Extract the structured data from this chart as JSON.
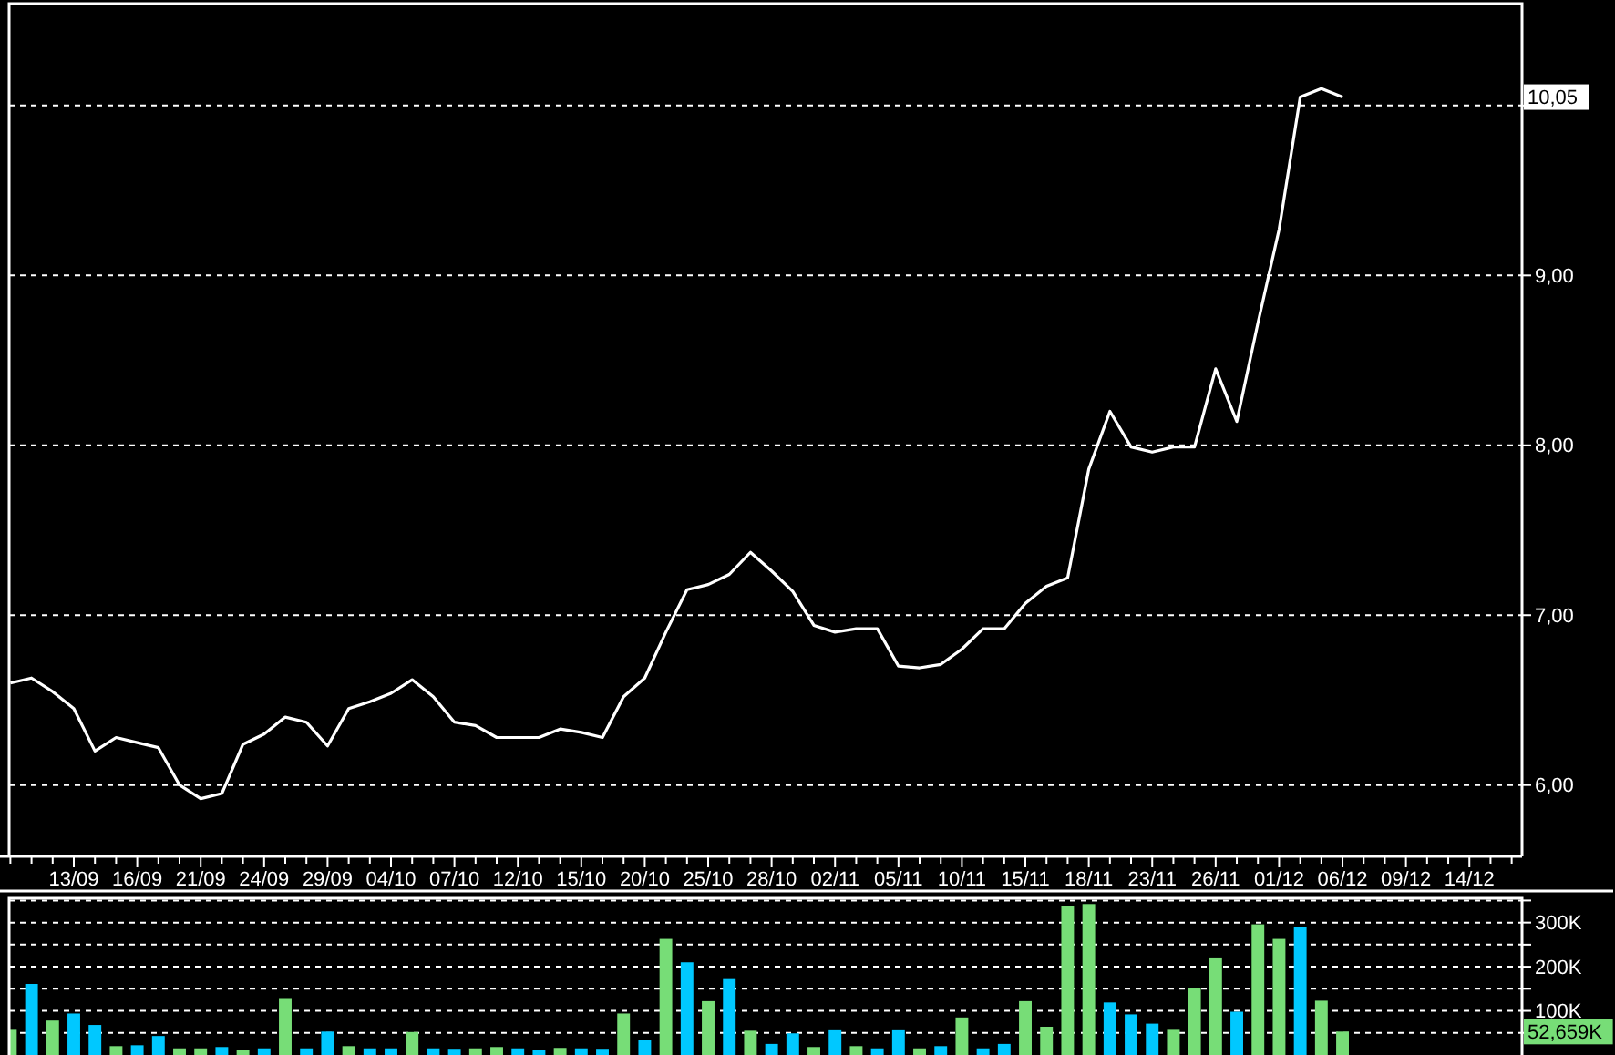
{
  "chart_data": [
    {
      "type": "line",
      "ylim": [
        5.58,
        10.6
      ],
      "categories": [
        null,
        null,
        null,
        "13/09",
        null,
        null,
        "16/09",
        null,
        null,
        "21/09",
        null,
        null,
        "24/09",
        null,
        null,
        "29/09",
        null,
        null,
        "04/10",
        null,
        null,
        "07/10",
        null,
        null,
        "12/10",
        null,
        null,
        "15/10",
        null,
        null,
        "20/10",
        null,
        null,
        "25/10",
        null,
        null,
        "28/10",
        null,
        null,
        "02/11",
        null,
        null,
        "05/11",
        null,
        null,
        "10/11",
        null,
        null,
        "15/11",
        null,
        null,
        "18/11",
        null,
        null,
        "23/11",
        null,
        null,
        "26/11",
        null,
        null,
        "01/12",
        null,
        null,
        "06/12",
        null,
        null,
        "09/12",
        null,
        null,
        "14/12",
        null,
        null
      ],
      "yticks": [
        {
          "value": 6,
          "label": "6,00"
        },
        {
          "value": 7,
          "label": "7,00"
        },
        {
          "value": 8,
          "label": "8,00"
        },
        {
          "value": 9,
          "label": "9,00"
        },
        {
          "value": 10,
          "label": null
        }
      ],
      "grid": "y",
      "annotations": [
        "10,05"
      ],
      "series": [
        {
          "color": "#ffffff",
          "values": [
            6.6,
            6.63,
            6.55,
            6.45,
            6.2,
            6.28,
            6.25,
            6.22,
            6.0,
            5.92,
            5.95,
            6.24,
            6.3,
            6.4,
            6.37,
            6.23,
            6.45,
            6.49,
            6.54,
            6.62,
            6.52,
            6.37,
            6.35,
            6.28,
            6.28,
            6.28,
            6.33,
            6.31,
            6.28,
            6.52,
            6.63,
            6.9,
            7.15,
            7.18,
            7.24,
            7.37,
            7.26,
            7.14,
            6.94,
            6.9,
            6.92,
            6.92,
            6.7,
            6.69,
            6.71,
            6.8,
            6.92,
            6.92,
            7.07,
            7.17,
            7.22,
            7.86,
            8.2,
            7.99,
            7.96,
            7.99,
            7.99,
            8.45,
            8.14,
            8.72,
            9.27,
            10.05,
            10.1,
            10.05,
            null,
            null,
            null,
            null,
            null,
            null,
            null,
            null
          ]
        }
      ]
    },
    {
      "type": "bar",
      "ylim": [
        0,
        355
      ],
      "categories": [
        null,
        null,
        null,
        null,
        null,
        null,
        null,
        null,
        null,
        null,
        null,
        null,
        null,
        null,
        null,
        null,
        null,
        null,
        null,
        null,
        null,
        null,
        null,
        null,
        null,
        null,
        null,
        null,
        null,
        null,
        null,
        null,
        null,
        null,
        null,
        null,
        null,
        null,
        null,
        null,
        null,
        null,
        null,
        null,
        null,
        null,
        null,
        null,
        null,
        null,
        null,
        null,
        null,
        null,
        null,
        null,
        null,
        null,
        null,
        null,
        null,
        null,
        null,
        null,
        null,
        null,
        null,
        null,
        null,
        null,
        null,
        null
      ],
      "yticks": [
        {
          "value": 50,
          "label": null
        },
        {
          "value": 100,
          "label": "100K"
        },
        {
          "value": 150,
          "label": null
        },
        {
          "value": 200,
          "label": "200K"
        },
        {
          "value": 250,
          "label": null
        },
        {
          "value": 300,
          "label": "300K"
        },
        {
          "value": 350,
          "label": null
        }
      ],
      "tick_labels": "y",
      "grid": "y",
      "annotations": [
        "52,659K"
      ],
      "values": [
        57,
        161,
        78,
        94,
        68,
        20,
        22,
        43,
        15,
        15,
        18,
        12,
        15,
        129,
        15,
        53,
        20,
        15,
        15,
        52,
        15,
        14,
        15,
        18,
        15,
        12,
        16,
        15,
        14,
        94,
        35,
        263,
        210,
        122,
        172,
        55,
        25,
        49,
        18,
        56,
        20,
        15,
        56,
        15,
        20,
        85,
        15,
        25,
        122,
        64,
        338,
        342,
        119,
        92,
        71,
        57,
        151,
        221,
        98,
        296,
        263,
        289,
        123,
        53,
        null,
        null,
        null,
        null,
        null,
        null,
        null,
        null
      ],
      "colors": [
        "#77dd77",
        "#00c8ff",
        "#77dd77",
        "#00c8ff",
        "#00c8ff",
        "#77dd77",
        "#00c8ff",
        "#00c8ff",
        "#77dd77",
        "#77dd77",
        "#00c8ff",
        "#77dd77",
        "#00c8ff",
        "#77dd77",
        "#00c8ff",
        "#00c8ff",
        "#77dd77",
        "#00c8ff",
        "#00c8ff",
        "#77dd77",
        "#00c8ff",
        "#00c8ff",
        "#77dd77",
        "#77dd77",
        "#00c8ff",
        "#00c8ff",
        "#77dd77",
        "#00c8ff",
        "#00c8ff",
        "#77dd77",
        "#00c8ff",
        "#77dd77",
        "#00c8ff",
        "#77dd77",
        "#00c8ff",
        "#77dd77",
        "#00c8ff",
        "#00c8ff",
        "#77dd77",
        "#00c8ff",
        "#77dd77",
        "#00c8ff",
        "#00c8ff",
        "#77dd77",
        "#00c8ff",
        "#77dd77",
        "#00c8ff",
        "#00c8ff",
        "#77dd77",
        "#77dd77",
        "#77dd77",
        "#77dd77",
        "#00c8ff",
        "#00c8ff",
        "#00c8ff",
        "#77dd77",
        "#77dd77",
        "#77dd77",
        "#00c8ff",
        "#77dd77",
        "#77dd77",
        "#00c8ff",
        "#77dd77",
        "#77dd77",
        null,
        null,
        null,
        null,
        null,
        null,
        null,
        null
      ]
    }
  ]
}
